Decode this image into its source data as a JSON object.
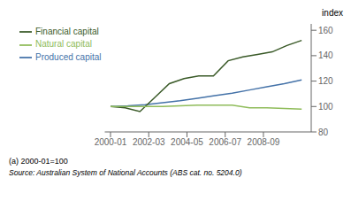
{
  "chart_data": {
    "type": "line",
    "ylabel": "index",
    "annotations": [
      "(a) 2000-01=100",
      "Source: Australian System of National Accounts (ABS cat. no. 5204.0)"
    ],
    "series": [
      {
        "name": "Produced capital",
        "color": "#4472a8",
        "x": [
          0,
          0.9090909090909091,
          1.8181818181818181,
          2.727272727272727,
          3.6363636363636362,
          4.545454545454545,
          5.454545454545454,
          6.363636363636363,
          7.2727272727272725,
          8.181818181818182,
          9.09090909090909,
          10
        ],
        "values": [
          100,
          100.5,
          101.5,
          103,
          104.5,
          106.5,
          108.5,
          110.5,
          113,
          115.5,
          118,
          121
        ]
      },
      {
        "name": "Financial capital",
        "color": "#3a5a28",
        "x": [
          0,
          0.7692307692307693,
          1.5384615384615385,
          2.3076923076923075,
          3.076923076923077,
          3.846153846153846,
          4.615384615384615,
          5.384615384615385,
          6.153846153846154,
          6.923076923076923,
          7.6923076923076925,
          8.461538461538462,
          9.23076923076923,
          10
        ],
        "values": [
          100,
          99,
          96,
          107,
          118,
          122,
          124,
          124,
          136,
          139,
          141,
          143,
          148,
          152
        ]
      },
      {
        "name": "Natural capital",
        "color": "#8fbc5a",
        "x": [
          0,
          0.9090909090909091,
          1.8181818181818181,
          2.727272727272727,
          3.6363636363636362,
          4.545454545454545,
          5.454545454545454,
          6.363636363636363,
          7.2727272727272725,
          8.181818181818182,
          9.09090909090909,
          10
        ],
        "values": [
          100,
          100,
          100,
          100,
          100.5,
          101,
          101,
          101,
          99,
          99,
          98.5,
          98
        ]
      }
    ],
    "xlim": [
      -0.3,
      10.5
    ],
    "xticks": [
      {
        "value": 0,
        "label": "2000-01"
      },
      {
        "value": 2,
        "label": "2002-03"
      },
      {
        "value": 4,
        "label": "2004-05"
      },
      {
        "value": 6,
        "label": "2006-07"
      },
      {
        "value": 8,
        "label": "2008-09"
      }
    ],
    "ylim": [
      80,
      165
    ],
    "yticks": [
      80,
      100,
      120,
      140,
      160
    ],
    "legend": "upper left",
    "grid": false
  }
}
